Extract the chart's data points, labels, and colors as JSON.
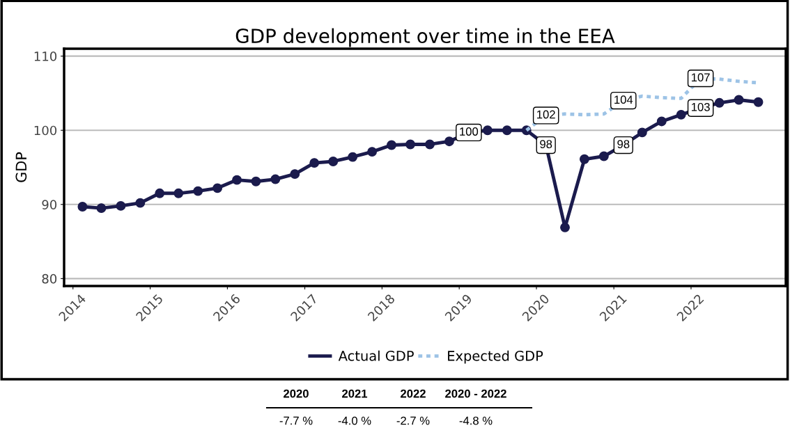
{
  "chart_data": {
    "type": "line",
    "title": "GDP development over time in the EEA",
    "ylabel": "GDP",
    "x": [
      "2014-02-15",
      "2014-05-15",
      "2014-08-15",
      "2014-11-15",
      "2015-02-15",
      "2015-05-15",
      "2015-08-15",
      "2015-11-15",
      "2016-02-15",
      "2016-05-15",
      "2016-08-15",
      "2016-11-15",
      "2017-02-15",
      "2017-05-15",
      "2017-08-15",
      "2017-11-15",
      "2018-02-15",
      "2018-05-15",
      "2018-08-15",
      "2018-11-15",
      "2019-02-15",
      "2019-05-15",
      "2019-08-15",
      "2019-11-15",
      "2020-02-15",
      "2020-05-15",
      "2020-08-15",
      "2020-11-15",
      "2021-02-15",
      "2021-05-15",
      "2021-08-15",
      "2021-11-15",
      "2022-02-15",
      "2022-05-15",
      "2022-08-15",
      "2022-11-15"
    ],
    "series": [
      {
        "name": "Actual GDP",
        "color": "#1b1b4d",
        "marker": "circle",
        "line_style": "solid",
        "values": [
          89.7,
          89.5,
          89.8,
          90.2,
          91.5,
          91.5,
          91.8,
          92.2,
          93.3,
          93.1,
          93.4,
          94.1,
          95.6,
          95.8,
          96.4,
          97.1,
          98.0,
          98.1,
          98.1,
          98.5,
          99.7,
          100.0,
          100.0,
          100.0,
          98,
          86.9,
          96.1,
          96.5,
          98,
          99.7,
          101.2,
          102.1,
          103,
          103.7,
          104.1,
          103.8
        ],
        "value_labels": [
          null,
          null,
          null,
          null,
          null,
          null,
          null,
          null,
          null,
          null,
          null,
          null,
          null,
          null,
          null,
          null,
          null,
          null,
          null,
          null,
          "100",
          null,
          null,
          null,
          "98",
          null,
          null,
          null,
          "98",
          null,
          null,
          null,
          "103",
          null,
          null,
          null
        ]
      },
      {
        "name": "Expected GDP",
        "color": "#9dc3e6",
        "marker": "none",
        "line_style": "dashed",
        "values": [
          null,
          null,
          null,
          null,
          null,
          null,
          null,
          null,
          null,
          null,
          null,
          null,
          null,
          null,
          null,
          null,
          null,
          null,
          null,
          null,
          null,
          null,
          null,
          100.0,
          102,
          102.2,
          102.1,
          102.2,
          104,
          104.6,
          104.4,
          104.3,
          107,
          106.9,
          106.6,
          106.4
        ],
        "value_labels": [
          null,
          null,
          null,
          null,
          null,
          null,
          null,
          null,
          null,
          null,
          null,
          null,
          null,
          null,
          null,
          null,
          null,
          null,
          null,
          null,
          null,
          null,
          null,
          null,
          "102",
          null,
          null,
          null,
          "104",
          null,
          null,
          null,
          "107",
          null,
          null,
          null
        ]
      }
    ],
    "xlim": [
      "2013-11-20",
      "2023-03-25"
    ],
    "xticks": [
      "2014",
      "2015",
      "2016",
      "2017",
      "2018",
      "2019",
      "2020",
      "2021",
      "2022"
    ],
    "ylim": [
      79,
      111
    ],
    "yticks": [
      80,
      90,
      100,
      110
    ],
    "grid": "y",
    "legend": "bottom",
    "annotations": [
      "2020",
      "2021",
      "2022",
      "2020 - 2022",
      "-7.7 %",
      "-4.0 %",
      "-2.7 %",
      "-4.8 %"
    ]
  }
}
